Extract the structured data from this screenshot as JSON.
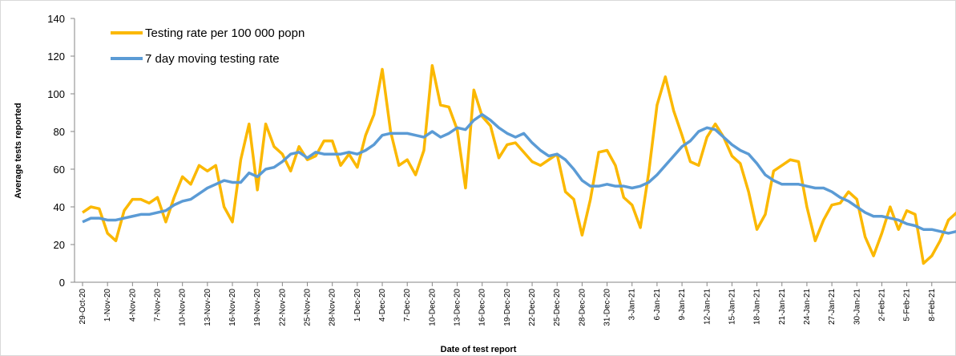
{
  "chart_data": {
    "type": "line",
    "x_label": "Date of test report",
    "y_label": "Average tests reported",
    "categories": [
      "29-Oct-20",
      null,
      null,
      "1-Nov-20",
      null,
      null,
      "4-Nov-20",
      null,
      null,
      "7-Nov-20",
      null,
      null,
      "10-Nov-20",
      null,
      null,
      "13-Nov-20",
      null,
      null,
      "16-Nov-20",
      null,
      null,
      "19-Nov-20",
      null,
      null,
      "22-Nov-20",
      null,
      null,
      "25-Nov-20",
      null,
      null,
      "28-Nov-20",
      null,
      null,
      "1-Dec-20",
      null,
      null,
      "4-Dec-20",
      null,
      null,
      "7-Dec-20",
      null,
      null,
      "10-Dec-20",
      null,
      null,
      "13-Dec-20",
      null,
      null,
      "16-Dec-20",
      null,
      null,
      "19-Dec-20",
      null,
      null,
      "22-Dec-20",
      null,
      null,
      "25-Dec-20",
      null,
      null,
      "28-Dec-20",
      null,
      null,
      "31-Dec-20",
      null,
      null,
      "3-Jan-21",
      null,
      null,
      "6-Jan-21",
      null,
      null,
      "9-Jan-21",
      null,
      null,
      "12-Jan-21",
      null,
      null,
      "15-Jan-21",
      null,
      null,
      "18-Jan-21",
      null,
      null,
      "21-Jan-21",
      null,
      null,
      "24-Jan-21",
      null,
      null,
      "27-Jan-21",
      null,
      null,
      "30-Jan-21",
      null,
      null,
      "2-Feb-21",
      null,
      null,
      "5-Feb-21",
      null,
      null,
      "8-Feb-21",
      null,
      null,
      null
    ],
    "series": [
      {
        "name": "Testing rate per 100 000 popn",
        "color": "#fbb800",
        "values": [
          37,
          40,
          39,
          26,
          22,
          38,
          44,
          44,
          42,
          45,
          32,
          45,
          56,
          52,
          62,
          59,
          62,
          40,
          32,
          65,
          84,
          49,
          84,
          72,
          68,
          59,
          72,
          65,
          67,
          75,
          75,
          62,
          68,
          61,
          78,
          89,
          113,
          80,
          62,
          65,
          57,
          70,
          115,
          94,
          93,
          81,
          50,
          102,
          88,
          83,
          66,
          73,
          74,
          69,
          64,
          62,
          65,
          68,
          48,
          44,
          25,
          44,
          69,
          70,
          62,
          45,
          41,
          29,
          58,
          94,
          109,
          91,
          78,
          64,
          62,
          77,
          84,
          77,
          67,
          63,
          48,
          28,
          36,
          59,
          62,
          65,
          64,
          40,
          22,
          33,
          41,
          42,
          48,
          44,
          24,
          14,
          26,
          40,
          28,
          38,
          36,
          10,
          14,
          22,
          33,
          37
        ]
      },
      {
        "name": "7 day moving testing rate",
        "color": "#5b9bd5",
        "values": [
          32,
          34,
          34,
          33,
          33,
          34,
          35,
          36,
          36,
          37,
          38,
          41,
          43,
          44,
          47,
          50,
          52,
          54,
          53,
          53,
          58,
          56,
          60,
          61,
          64,
          68,
          69,
          66,
          69,
          68,
          68,
          68,
          69,
          68,
          70,
          73,
          78,
          79,
          79,
          79,
          78,
          77,
          80,
          77,
          79,
          82,
          81,
          86,
          89,
          86,
          82,
          79,
          77,
          79,
          74,
          70,
          67,
          68,
          65,
          60,
          54,
          51,
          51,
          52,
          51,
          51,
          50,
          51,
          53,
          57,
          62,
          67,
          72,
          75,
          80,
          82,
          81,
          77,
          73,
          70,
          68,
          63,
          57,
          54,
          52,
          52,
          52,
          51,
          50,
          50,
          48,
          45,
          43,
          40,
          37,
          35,
          35,
          34,
          33,
          31,
          30,
          28,
          28,
          27,
          26,
          27
        ]
      }
    ],
    "ylim": [
      0,
      140
    ],
    "yticks": [
      0,
      20,
      40,
      60,
      80,
      100,
      120,
      140
    ],
    "legend": "upper left"
  }
}
